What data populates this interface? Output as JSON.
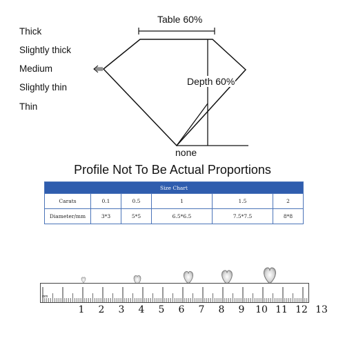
{
  "diagram": {
    "table_label": "Table 60%",
    "depth_label": "Depth 60%",
    "culet_label": "none"
  },
  "girdle_labels": [
    "Thick",
    "Slightly thick",
    "Medium",
    "Slightly thin",
    "Thin"
  ],
  "heading": "Profile Not To Be Actual Proportions",
  "size_chart": {
    "title": "Size Chart",
    "rows": [
      {
        "label": "Carats",
        "values": [
          "0.1",
          "0.5",
          "1",
          "1.5",
          "2"
        ]
      },
      {
        "label": "Diameter/mm",
        "values": [
          "3*3",
          "5*5",
          "6.5*6.5",
          "7.5*7.5",
          "8*8"
        ]
      }
    ],
    "header_color": "#2f5dae"
  },
  "ruler": {
    "unit": "mm",
    "numbers": [
      "1",
      "2",
      "3",
      "4",
      "5",
      "6",
      "7",
      "8",
      "9",
      "10",
      "11",
      "12",
      "13"
    ]
  }
}
